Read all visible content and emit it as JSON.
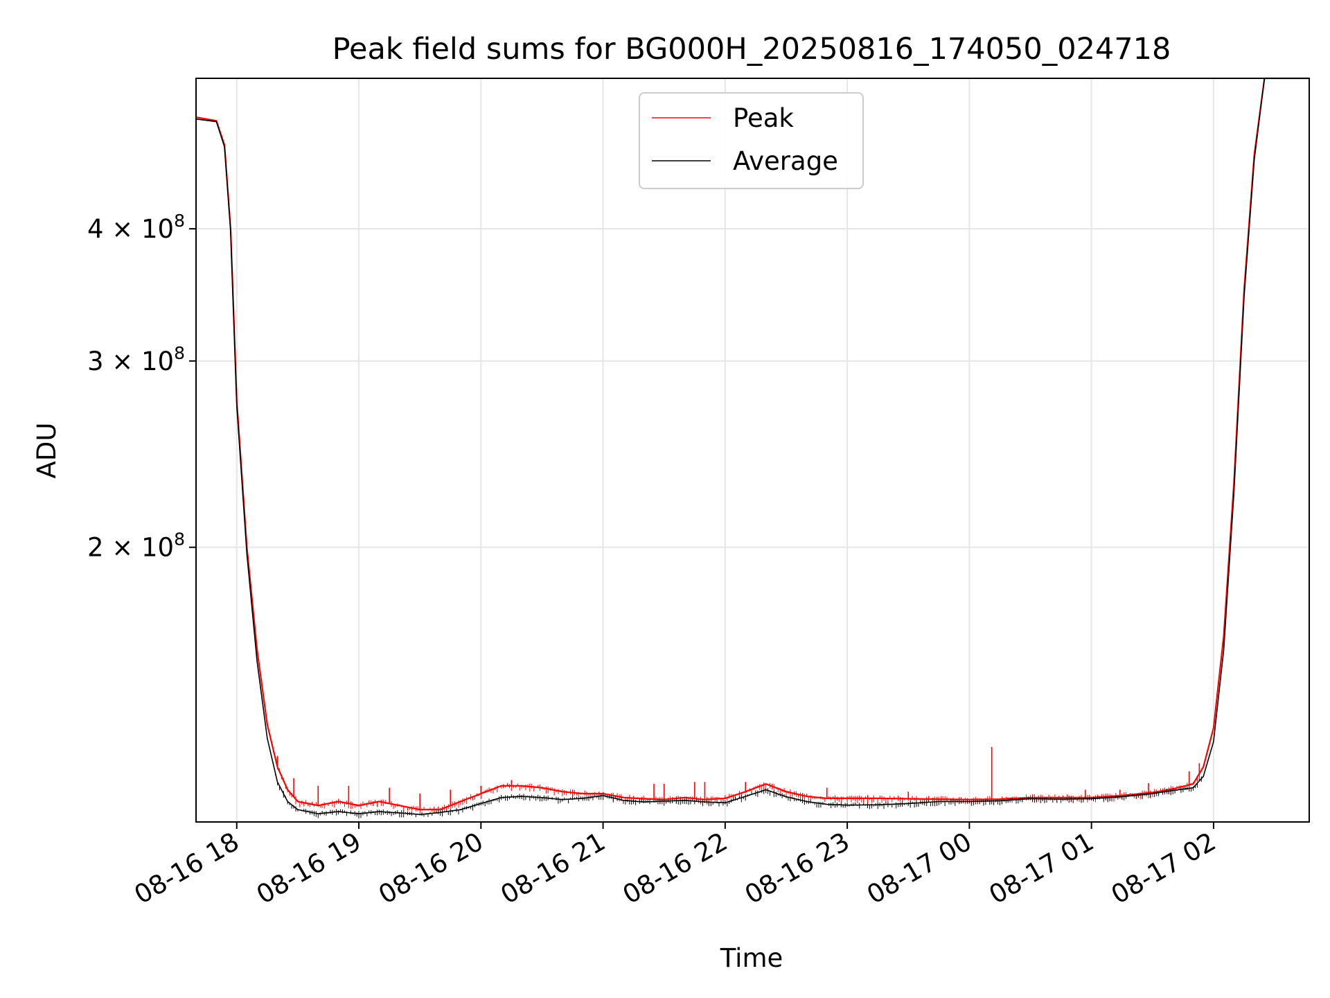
{
  "chart_data": {
    "type": "line",
    "title": "Peak field sums for BG000H_20250816_174050_024718",
    "xlabel": "Time",
    "ylabel": "ADU",
    "yscale": "log",
    "grid": true,
    "legend_position": "upper center",
    "xlim": [
      "2025-08-16 17:40",
      "2025-08-17 02:47"
    ],
    "ylim": [
      110000000,
      555000000
    ],
    "x_ticks": [
      {
        "t": "2025-08-16 18:00",
        "label": "08-16 18"
      },
      {
        "t": "2025-08-16 19:00",
        "label": "08-16 19"
      },
      {
        "t": "2025-08-16 20:00",
        "label": "08-16 20"
      },
      {
        "t": "2025-08-16 21:00",
        "label": "08-16 21"
      },
      {
        "t": "2025-08-16 22:00",
        "label": "08-16 22"
      },
      {
        "t": "2025-08-16 23:00",
        "label": "08-16 23"
      },
      {
        "t": "2025-08-17 00:00",
        "label": "08-17 00"
      },
      {
        "t": "2025-08-17 01:00",
        "label": "08-17 01"
      },
      {
        "t": "2025-08-17 02:00",
        "label": "08-17 02"
      }
    ],
    "y_ticks": [
      {
        "value": 200000000,
        "base": "2 × 10",
        "exp": "8"
      },
      {
        "value": 300000000,
        "base": "3 × 10",
        "exp": "8"
      },
      {
        "value": 400000000,
        "base": "4 × 10",
        "exp": "8"
      }
    ],
    "series": [
      {
        "name": "Peak",
        "color": "#ff0000",
        "points": [
          [
            "2025-08-16 17:40",
            510000000
          ],
          [
            "2025-08-16 17:50",
            506000000
          ],
          [
            "2025-08-16 17:54",
            480000000
          ],
          [
            "2025-08-16 17:57",
            400000000
          ],
          [
            "2025-08-16 18:00",
            275000000
          ],
          [
            "2025-08-16 18:05",
            200000000
          ],
          [
            "2025-08-16 18:10",
            160000000
          ],
          [
            "2025-08-16 18:15",
            136000000
          ],
          [
            "2025-08-16 18:20",
            124000000
          ],
          [
            "2025-08-16 18:25",
            118000000
          ],
          [
            "2025-08-16 18:30",
            115000000
          ],
          [
            "2025-08-16 18:40",
            114000000
          ],
          [
            "2025-08-16 18:50",
            115000000
          ],
          [
            "2025-08-16 19:00",
            114000000
          ],
          [
            "2025-08-16 19:10",
            115000000
          ],
          [
            "2025-08-16 19:20",
            114000000
          ],
          [
            "2025-08-16 19:30",
            113000000
          ],
          [
            "2025-08-16 19:40",
            113000000
          ],
          [
            "2025-08-16 19:50",
            115000000
          ],
          [
            "2025-08-16 20:00",
            117000000
          ],
          [
            "2025-08-16 20:10",
            119000000
          ],
          [
            "2025-08-16 20:20",
            119000000
          ],
          [
            "2025-08-16 20:30",
            118500000
          ],
          [
            "2025-08-16 20:40",
            117500000
          ],
          [
            "2025-08-16 20:50",
            117000000
          ],
          [
            "2025-08-16 21:00",
            117000000
          ],
          [
            "2025-08-16 21:10",
            116000000
          ],
          [
            "2025-08-16 21:20",
            115700000
          ],
          [
            "2025-08-16 21:30",
            115500000
          ],
          [
            "2025-08-16 21:40",
            116000000
          ],
          [
            "2025-08-16 21:50",
            115500000
          ],
          [
            "2025-08-16 22:00",
            115800000
          ],
          [
            "2025-08-16 22:10",
            117500000
          ],
          [
            "2025-08-16 22:20",
            119500000
          ],
          [
            "2025-08-16 22:30",
            117500000
          ],
          [
            "2025-08-16 22:40",
            116300000
          ],
          [
            "2025-08-16 22:50",
            115800000
          ],
          [
            "2025-08-16 23:00",
            115800000
          ],
          [
            "2025-08-16 23:15",
            115800000
          ],
          [
            "2025-08-16 23:30",
            115700000
          ],
          [
            "2025-08-16 23:45",
            115600000
          ],
          [
            "2025-08-17 00:00",
            115500000
          ],
          [
            "2025-08-17 00:15",
            115600000
          ],
          [
            "2025-08-17 00:30",
            116000000
          ],
          [
            "2025-08-17 00:45",
            116000000
          ],
          [
            "2025-08-17 01:00",
            116000000
          ],
          [
            "2025-08-17 01:15",
            116500000
          ],
          [
            "2025-08-17 01:30",
            117300000
          ],
          [
            "2025-08-17 01:40",
            118200000
          ],
          [
            "2025-08-17 01:50",
            119500000
          ],
          [
            "2025-08-17 01:55",
            124000000
          ],
          [
            "2025-08-17 02:00",
            135000000
          ],
          [
            "2025-08-17 02:05",
            165000000
          ],
          [
            "2025-08-17 02:10",
            230000000
          ],
          [
            "2025-08-17 02:15",
            350000000
          ],
          [
            "2025-08-17 02:20",
            470000000
          ],
          [
            "2025-08-17 02:25",
            555000000
          ],
          [
            "2025-08-17 02:47",
            555000000
          ]
        ],
        "spikes": [
          [
            "2025-08-16 18:20",
            127000000
          ],
          [
            "2025-08-16 18:28",
            121000000
          ],
          [
            "2025-08-16 18:40",
            119000000
          ],
          [
            "2025-08-16 18:55",
            119000000
          ],
          [
            "2025-08-16 19:15",
            118500000
          ],
          [
            "2025-08-16 19:30",
            117000000
          ],
          [
            "2025-08-16 19:45",
            118000000
          ],
          [
            "2025-08-16 20:00",
            119000000
          ],
          [
            "2025-08-16 20:15",
            120500000
          ],
          [
            "2025-08-16 21:25",
            119500000
          ],
          [
            "2025-08-16 21:30",
            119500000
          ],
          [
            "2025-08-16 21:45",
            120000000
          ],
          [
            "2025-08-16 21:50",
            120000000
          ],
          [
            "2025-08-16 22:10",
            120000000
          ],
          [
            "2025-08-16 22:50",
            118500000
          ],
          [
            "2025-08-16 23:30",
            117500000
          ],
          [
            "2025-08-17 00:11",
            129500000
          ],
          [
            "2025-08-17 00:57",
            118000000
          ],
          [
            "2025-08-17 01:14",
            118000000
          ],
          [
            "2025-08-17 01:28",
            119700000
          ],
          [
            "2025-08-17 01:48",
            122800000
          ],
          [
            "2025-08-17 01:53",
            125000000
          ]
        ]
      },
      {
        "name": "Average",
        "color": "#000000",
        "points": [
          [
            "2025-08-16 17:40",
            508000000
          ],
          [
            "2025-08-16 17:50",
            505000000
          ],
          [
            "2025-08-16 17:54",
            478000000
          ],
          [
            "2025-08-16 17:57",
            398000000
          ],
          [
            "2025-08-16 18:00",
            272000000
          ],
          [
            "2025-08-16 18:05",
            197000000
          ],
          [
            "2025-08-16 18:10",
            156000000
          ],
          [
            "2025-08-16 18:15",
            132000000
          ],
          [
            "2025-08-16 18:20",
            120000000
          ],
          [
            "2025-08-16 18:25",
            115000000
          ],
          [
            "2025-08-16 18:30",
            113000000
          ],
          [
            "2025-08-16 18:40",
            112000000
          ],
          [
            "2025-08-16 18:50",
            112500000
          ],
          [
            "2025-08-16 19:00",
            112000000
          ],
          [
            "2025-08-16 19:10",
            112500000
          ],
          [
            "2025-08-16 19:20",
            112200000
          ],
          [
            "2025-08-16 19:30",
            111800000
          ],
          [
            "2025-08-16 19:40",
            112300000
          ],
          [
            "2025-08-16 19:50",
            113000000
          ],
          [
            "2025-08-16 20:00",
            114500000
          ],
          [
            "2025-08-16 20:10",
            116000000
          ],
          [
            "2025-08-16 20:20",
            116300000
          ],
          [
            "2025-08-16 20:30",
            116000000
          ],
          [
            "2025-08-16 20:40",
            115500000
          ],
          [
            "2025-08-16 20:50",
            115800000
          ],
          [
            "2025-08-16 21:00",
            116500000
          ],
          [
            "2025-08-16 21:10",
            115300000
          ],
          [
            "2025-08-16 21:20",
            114900000
          ],
          [
            "2025-08-16 21:30",
            115100000
          ],
          [
            "2025-08-16 21:40",
            115300000
          ],
          [
            "2025-08-16 21:50",
            114900000
          ],
          [
            "2025-08-16 22:00",
            114700000
          ],
          [
            "2025-08-16 22:10",
            116300000
          ],
          [
            "2025-08-16 22:20",
            118000000
          ],
          [
            "2025-08-16 22:30",
            116200000
          ],
          [
            "2025-08-16 22:40",
            115000000
          ],
          [
            "2025-08-16 22:50",
            114300000
          ],
          [
            "2025-08-16 23:00",
            114100000
          ],
          [
            "2025-08-16 23:15",
            114200000
          ],
          [
            "2025-08-16 23:30",
            114500000
          ],
          [
            "2025-08-16 23:45",
            115000000
          ],
          [
            "2025-08-17 00:00",
            115000000
          ],
          [
            "2025-08-17 00:15",
            115200000
          ],
          [
            "2025-08-17 00:30",
            115700000
          ],
          [
            "2025-08-17 00:45",
            115600000
          ],
          [
            "2025-08-17 01:00",
            115700000
          ],
          [
            "2025-08-17 01:15",
            116200000
          ],
          [
            "2025-08-17 01:30",
            117000000
          ],
          [
            "2025-08-17 01:40",
            117800000
          ],
          [
            "2025-08-17 01:50",
            118500000
          ],
          [
            "2025-08-17 01:55",
            121500000
          ],
          [
            "2025-08-17 02:00",
            131000000
          ],
          [
            "2025-08-17 02:05",
            160000000
          ],
          [
            "2025-08-17 02:10",
            225000000
          ],
          [
            "2025-08-17 02:15",
            345000000
          ],
          [
            "2025-08-17 02:20",
            465000000
          ],
          [
            "2025-08-17 02:25",
            555000000
          ],
          [
            "2025-08-17 02:47",
            555000000
          ]
        ]
      }
    ]
  }
}
